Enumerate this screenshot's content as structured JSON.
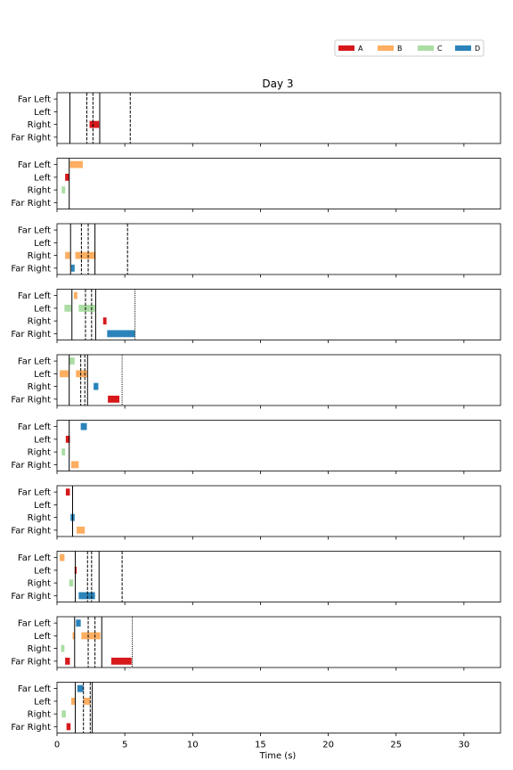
{
  "chart_data": {
    "type": "bar",
    "title": "Day 3",
    "xlabel": "Time (s)",
    "xlim": [
      0,
      32.7
    ],
    "xticks": [
      0,
      5,
      10,
      15,
      20,
      25,
      30
    ],
    "categories": [
      "Far Left",
      "Left",
      "Right",
      "Far Right"
    ],
    "legend": {
      "position": "top-right",
      "entries": [
        {
          "name": "A",
          "color": "#d7191c"
        },
        {
          "name": "B",
          "color": "#fdae61"
        },
        {
          "name": "C",
          "color": "#abdda4"
        },
        {
          "name": "D",
          "color": "#2b83ba"
        }
      ]
    },
    "panels": [
      {
        "vlines": [
          {
            "x": 0.95,
            "style": "solid"
          },
          {
            "x": 3.15,
            "style": "solid"
          },
          {
            "x": 2.2,
            "style": "dashed"
          },
          {
            "x": 2.65,
            "style": "dashed"
          },
          {
            "x": 5.4,
            "style": "dashed"
          }
        ],
        "bars": [
          {
            "row": "Right",
            "series": "A",
            "start": 2.4,
            "end": 3.1
          }
        ]
      },
      {
        "vlines": [
          {
            "x": 0.9,
            "style": "solid"
          }
        ],
        "bars": [
          {
            "row": "Far Left",
            "series": "B",
            "start": 0.95,
            "end": 1.9
          },
          {
            "row": "Left",
            "series": "A",
            "start": 0.6,
            "end": 0.9
          },
          {
            "row": "Right",
            "series": "C",
            "start": 0.35,
            "end": 0.6
          }
        ]
      },
      {
        "vlines": [
          {
            "x": 1.0,
            "style": "solid"
          },
          {
            "x": 2.8,
            "style": "solid"
          },
          {
            "x": 1.8,
            "style": "dashed"
          },
          {
            "x": 2.3,
            "style": "dashed"
          },
          {
            "x": 5.2,
            "style": "dashed"
          }
        ],
        "bars": [
          {
            "row": "Right",
            "series": "B",
            "start": 0.6,
            "end": 0.95
          },
          {
            "row": "Right",
            "series": "B",
            "start": 1.35,
            "end": 2.85
          },
          {
            "row": "Far Right",
            "series": "D",
            "start": 1.05,
            "end": 1.3
          }
        ]
      },
      {
        "vlines": [
          {
            "x": 1.1,
            "style": "solid"
          },
          {
            "x": 2.85,
            "style": "solid"
          },
          {
            "x": 2.1,
            "style": "dashed"
          },
          {
            "x": 2.55,
            "style": "dashed"
          },
          {
            "x": 5.75,
            "style": "dotted"
          }
        ],
        "bars": [
          {
            "row": "Far Left",
            "series": "B",
            "start": 1.25,
            "end": 1.5
          },
          {
            "row": "Left",
            "series": "C",
            "start": 0.55,
            "end": 1.05
          },
          {
            "row": "Left",
            "series": "C",
            "start": 1.6,
            "end": 2.8
          },
          {
            "row": "Right",
            "series": "A",
            "start": 3.4,
            "end": 3.65
          },
          {
            "row": "Far Right",
            "series": "D",
            "start": 3.7,
            "end": 5.75
          }
        ]
      },
      {
        "vlines": [
          {
            "x": 0.9,
            "style": "solid"
          },
          {
            "x": 2.25,
            "style": "solid"
          },
          {
            "x": 1.75,
            "style": "dashed"
          },
          {
            "x": 2.05,
            "style": "dashed"
          },
          {
            "x": 4.8,
            "style": "dotted"
          }
        ],
        "bars": [
          {
            "row": "Far Left",
            "series": "C",
            "start": 0.9,
            "end": 1.3
          },
          {
            "row": "Left",
            "series": "B",
            "start": 0.2,
            "end": 0.85
          },
          {
            "row": "Left",
            "series": "B",
            "start": 1.4,
            "end": 2.2
          },
          {
            "row": "Right",
            "series": "D",
            "start": 2.7,
            "end": 3.05
          },
          {
            "row": "Far Right",
            "series": "A",
            "start": 3.75,
            "end": 4.6
          }
        ]
      },
      {
        "vlines": [
          {
            "x": 0.9,
            "style": "solid"
          }
        ],
        "bars": [
          {
            "row": "Far Left",
            "series": "D",
            "start": 1.75,
            "end": 2.2
          },
          {
            "row": "Left",
            "series": "A",
            "start": 0.65,
            "end": 0.95
          },
          {
            "row": "Right",
            "series": "C",
            "start": 0.35,
            "end": 0.6
          },
          {
            "row": "Far Right",
            "series": "B",
            "start": 1.05,
            "end": 1.6
          }
        ]
      },
      {
        "vlines": [
          {
            "x": 1.15,
            "style": "solid"
          }
        ],
        "bars": [
          {
            "row": "Far Left",
            "series": "A",
            "start": 0.65,
            "end": 0.95
          },
          {
            "row": "Right",
            "series": "D",
            "start": 1.0,
            "end": 1.3
          },
          {
            "row": "Far Right",
            "series": "B",
            "start": 1.45,
            "end": 2.05
          }
        ]
      },
      {
        "vlines": [
          {
            "x": 1.35,
            "style": "solid"
          },
          {
            "x": 3.1,
            "style": "solid"
          },
          {
            "x": 2.25,
            "style": "dashed"
          },
          {
            "x": 2.55,
            "style": "dashed"
          },
          {
            "x": 4.8,
            "style": "dashed"
          }
        ],
        "bars": [
          {
            "row": "Far Left",
            "series": "B",
            "start": 0.2,
            "end": 0.55
          },
          {
            "row": "Left",
            "series": "A",
            "start": 1.3,
            "end": 1.45
          },
          {
            "row": "Right",
            "series": "C",
            "start": 0.9,
            "end": 1.2
          },
          {
            "row": "Far Right",
            "series": "D",
            "start": 1.6,
            "end": 2.8
          }
        ]
      },
      {
        "vlines": [
          {
            "x": 1.3,
            "style": "solid"
          },
          {
            "x": 3.3,
            "style": "solid"
          },
          {
            "x": 2.3,
            "style": "dashed"
          },
          {
            "x": 2.8,
            "style": "dashed"
          },
          {
            "x": 5.55,
            "style": "dotted"
          }
        ],
        "bars": [
          {
            "row": "Far Left",
            "series": "D",
            "start": 1.4,
            "end": 1.75
          },
          {
            "row": "Left",
            "series": "B",
            "start": 1.15,
            "end": 1.3
          },
          {
            "row": "Left",
            "series": "B",
            "start": 1.8,
            "end": 3.2
          },
          {
            "row": "Right",
            "series": "C",
            "start": 0.3,
            "end": 0.55
          },
          {
            "row": "Far Right",
            "series": "A",
            "start": 0.6,
            "end": 0.95
          },
          {
            "row": "Far Right",
            "series": "A",
            "start": 4.0,
            "end": 5.5
          }
        ]
      },
      {
        "vlines": [
          {
            "x": 1.35,
            "style": "solid"
          },
          {
            "x": 2.6,
            "style": "solid"
          },
          {
            "x": 1.95,
            "style": "dashed"
          },
          {
            "x": 2.45,
            "style": "dashed"
          }
        ],
        "bars": [
          {
            "row": "Far Left",
            "series": "D",
            "start": 1.5,
            "end": 1.95
          },
          {
            "row": "Left",
            "series": "B",
            "start": 1.05,
            "end": 1.35
          },
          {
            "row": "Left",
            "series": "B",
            "start": 1.95,
            "end": 2.45
          },
          {
            "row": "Right",
            "series": "C",
            "start": 0.35,
            "end": 0.65
          },
          {
            "row": "Far Right",
            "series": "A",
            "start": 0.7,
            "end": 1.0
          }
        ]
      }
    ]
  }
}
